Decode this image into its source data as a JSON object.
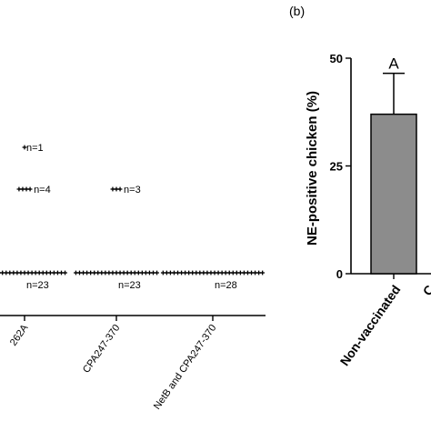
{
  "panel_b_label": "(b)",
  "chart_data": [
    {
      "type": "scatter",
      "categories": [
        "262A",
        "CPA247-370",
        "NetB and CPA247-370"
      ],
      "groups": [
        {
          "category": "262A",
          "clusters": [
            {
              "y": 3,
              "n": 1,
              "label": "n=1"
            },
            {
              "y": 2,
              "n": 4,
              "label": "n=4"
            },
            {
              "y": 0,
              "n": 23,
              "label": "n=23"
            }
          ]
        },
        {
          "category": "CPA247-370",
          "clusters": [
            {
              "y": 2,
              "n": 3,
              "label": "n=3"
            },
            {
              "y": 0,
              "n": 23,
              "label": "n=23"
            }
          ]
        },
        {
          "category": "NetB and CPA247-370",
          "clusters": [
            {
              "y": 0,
              "n": 28,
              "label": "n=28"
            }
          ]
        }
      ],
      "ylim": [
        0,
        4
      ]
    },
    {
      "type": "bar",
      "categories": [
        "Non-vaccinated"
      ],
      "values": [
        37
      ],
      "error": [
        9.5
      ],
      "letters": [
        "A"
      ],
      "ylabel": "NE-positive chicken (%)",
      "yticks": [
        0,
        25,
        50
      ],
      "ylim": [
        0,
        50
      ],
      "bar_color": "#8c8c8c",
      "partial_next_label": "C"
    }
  ]
}
